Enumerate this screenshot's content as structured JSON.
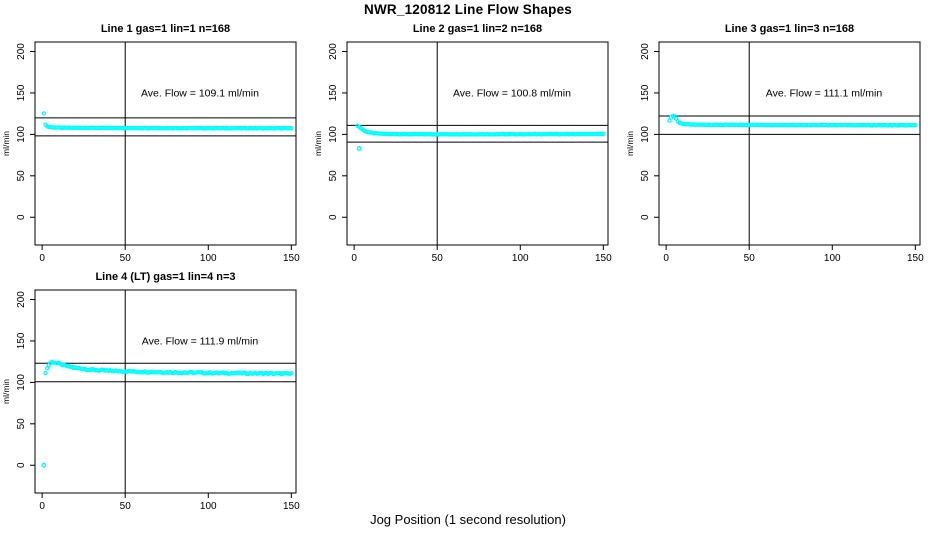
{
  "page": {
    "title": "NWR_120812  Line Flow Shapes",
    "xlabel": "Jog Position (1 second resolution)",
    "ylabel": "ml/min"
  },
  "colors": {
    "points": "#00FFFF",
    "lines": "#000000",
    "text": "#000000",
    "background": "#FFFFFF"
  },
  "axes": {
    "x_ticks": [
      0,
      50,
      100,
      150
    ],
    "y_ticks": [
      0,
      50,
      100,
      150,
      200
    ],
    "xlim": [
      -4.3,
      152.8
    ],
    "ylim": [
      -33.5,
      211.5
    ],
    "vline_x": 50,
    "grid": false
  },
  "chart_data": [
    {
      "type": "scatter",
      "title": "Line 1 gas=1 lin=1 n=168",
      "annotation": "Ave. Flow =  109.1  ml/min",
      "ave_flow_ml_min": 109.1,
      "n": 168,
      "hlines": [
        120.0,
        98.2
      ],
      "x_start": 1,
      "x_end": 150,
      "anchors": [
        [
          1,
          125
        ],
        [
          2,
          112
        ],
        [
          3,
          109.8
        ],
        [
          4,
          109.2
        ],
        [
          6,
          108.5
        ],
        [
          10,
          108.1
        ],
        [
          20,
          107.9
        ],
        [
          50,
          107.6
        ],
        [
          100,
          107.4
        ],
        [
          150,
          107.3
        ]
      ],
      "outliers": [],
      "jitter": 0.25
    },
    {
      "type": "scatter",
      "title": "Line 2 gas=1 lin=2 n=168",
      "annotation": "Ave. Flow =  100.8  ml/min",
      "ave_flow_ml_min": 100.8,
      "n": 168,
      "hlines": [
        110.9,
        90.7
      ],
      "x_start": 2,
      "x_end": 150,
      "anchors": [
        [
          2,
          110.5
        ],
        [
          3,
          109
        ],
        [
          4,
          107.5
        ],
        [
          6,
          104.5
        ],
        [
          8,
          102.8
        ],
        [
          12,
          101.3
        ],
        [
          18,
          100.6
        ],
        [
          30,
          100.2
        ],
        [
          60,
          100.1
        ],
        [
          100,
          100.2
        ],
        [
          150,
          100.4
        ]
      ],
      "outliers": [
        [
          3,
          83
        ]
      ],
      "jitter": 0.25
    },
    {
      "type": "scatter",
      "title": "Line 3 gas=1 lin=3 n=168",
      "annotation": "Ave. Flow =  111.1  ml/min",
      "ave_flow_ml_min": 111.1,
      "n": 168,
      "hlines": [
        122.2,
        100.0
      ],
      "x_start": 2,
      "x_end": 150,
      "anchors": [
        [
          2,
          117
        ],
        [
          3,
          120.5
        ],
        [
          4,
          122.5
        ],
        [
          5,
          122
        ],
        [
          6,
          119
        ],
        [
          7,
          116
        ],
        [
          8,
          114
        ],
        [
          10,
          112.5
        ],
        [
          15,
          111.8
        ],
        [
          30,
          111.5
        ],
        [
          60,
          111.4
        ],
        [
          100,
          111.2
        ],
        [
          150,
          111.0
        ]
      ],
      "outliers": [],
      "jitter": 0.3
    },
    {
      "type": "scatter",
      "title": "Line 4 (LT) gas=1 lin=4 n=3",
      "annotation": "Ave. Flow =  111.9  ml/min",
      "ave_flow_ml_min": 111.9,
      "n": 3,
      "hlines": [
        123.1,
        100.7
      ],
      "x_start": 2,
      "x_end": 150,
      "anchors": [
        [
          2,
          112
        ],
        [
          3,
          117
        ],
        [
          4,
          121
        ],
        [
          5,
          123.5
        ],
        [
          6,
          124.5
        ],
        [
          8,
          124
        ],
        [
          10,
          122.5
        ],
        [
          14,
          120
        ],
        [
          20,
          117.5
        ],
        [
          28,
          115.5
        ],
        [
          40,
          114
        ],
        [
          60,
          112.8
        ],
        [
          80,
          112
        ],
        [
          100,
          111.5
        ],
        [
          125,
          111
        ],
        [
          150,
          110.5
        ]
      ],
      "outliers": [
        [
          1,
          0
        ]
      ],
      "jitter": 0.8
    }
  ]
}
